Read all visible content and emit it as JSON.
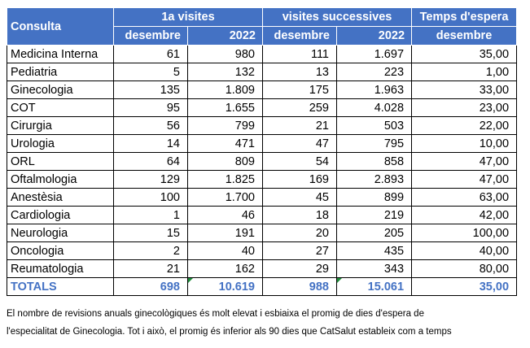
{
  "table": {
    "header": {
      "consulta": "Consulta",
      "group1": "1a visites",
      "group2": "visites successives",
      "group3": "Temps d'espera",
      "sub": [
        "desembre",
        "2022",
        "desembre",
        "2022",
        "desembre"
      ]
    },
    "rows": [
      {
        "name": "Medicina Interna",
        "v": [
          "61",
          "980",
          "111",
          "1.697",
          "35,00"
        ]
      },
      {
        "name": "Pediatria",
        "v": [
          "5",
          "132",
          "13",
          "223",
          "1,00"
        ]
      },
      {
        "name": "Ginecologia",
        "v": [
          "135",
          "1.809",
          "175",
          "1.963",
          "33,00"
        ]
      },
      {
        "name": "COT",
        "v": [
          "95",
          "1.655",
          "259",
          "4.028",
          "23,00"
        ]
      },
      {
        "name": "Cirurgia",
        "v": [
          "56",
          "799",
          "21",
          "503",
          "22,00"
        ]
      },
      {
        "name": "Urologia",
        "v": [
          "14",
          "471",
          "47",
          "795",
          "10,00"
        ]
      },
      {
        "name": "ORL",
        "v": [
          "64",
          "809",
          "54",
          "858",
          "47,00"
        ]
      },
      {
        "name": "Oftalmologia",
        "v": [
          "129",
          "1.825",
          "169",
          "2.893",
          "47,00"
        ]
      },
      {
        "name": "Anestèsia",
        "v": [
          "100",
          "1.700",
          "45",
          "899",
          "63,00"
        ]
      },
      {
        "name": "Cardiologia",
        "v": [
          "1",
          "46",
          "18",
          "219",
          "42,00"
        ]
      },
      {
        "name": "Neurologia",
        "v": [
          "15",
          "191",
          "20",
          "205",
          "100,00"
        ]
      },
      {
        "name": "Oncologia",
        "v": [
          "2",
          "40",
          "27",
          "435",
          "40,00"
        ]
      },
      {
        "name": "Reumatologia",
        "v": [
          "21",
          "162",
          "29",
          "343",
          "80,00"
        ]
      }
    ],
    "totals": {
      "name": "TOTALS",
      "v": [
        "698",
        "10.619",
        "988",
        "15.061",
        "35,00"
      ]
    }
  },
  "note": {
    "line1": "El nombre de revisions anuals ginecològiques és molt elevat i esbiaixa el promig de dies d'espera de",
    "line2": "l'especialitat de Ginecologia. Tot i això, el promig és inferior als 90 dies que CatSalut estableix com a temps"
  },
  "colors": {
    "header_bg": "#4472c4",
    "totals_text": "#4472c4",
    "formula_flag": "#1e8c3a"
  }
}
